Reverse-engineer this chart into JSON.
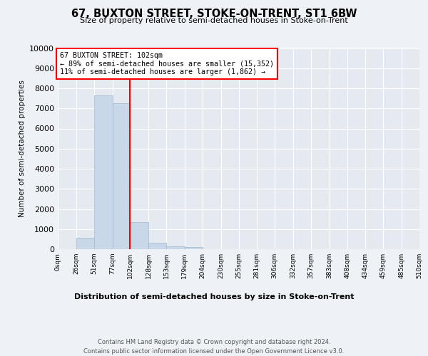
{
  "title": "67, BUXTON STREET, STOKE-ON-TRENT, ST1 6BW",
  "subtitle": "Size of property relative to semi-detached houses in Stoke-on-Trent",
  "xlabel": "Distribution of semi-detached houses by size in Stoke-on-Trent",
  "ylabel": "Number of semi-detached properties",
  "bins": [
    0,
    26,
    51,
    77,
    102,
    128,
    153,
    179,
    204,
    230,
    255,
    281,
    306,
    332,
    357,
    383,
    408,
    434,
    459,
    485,
    510
  ],
  "bar_heights": [
    0,
    580,
    7650,
    7250,
    1350,
    310,
    145,
    90,
    0,
    0,
    0,
    0,
    0,
    0,
    0,
    0,
    0,
    0,
    0,
    0
  ],
  "bar_color": "#c8d8e8",
  "bar_edge_color": "#a0b8d0",
  "vline_x": 102,
  "vline_color": "red",
  "annotation_text": "67 BUXTON STREET: 102sqm\n← 89% of semi-detached houses are smaller (15,352)\n11% of semi-detached houses are larger (1,862) →",
  "annotation_box_color": "white",
  "annotation_box_edge": "red",
  "ylim": [
    0,
    10000
  ],
  "yticks": [
    0,
    1000,
    2000,
    3000,
    4000,
    5000,
    6000,
    7000,
    8000,
    9000,
    10000
  ],
  "tick_labels": [
    "0sqm",
    "26sqm",
    "51sqm",
    "77sqm",
    "102sqm",
    "128sqm",
    "153sqm",
    "179sqm",
    "204sqm",
    "230sqm",
    "255sqm",
    "281sqm",
    "306sqm",
    "332sqm",
    "357sqm",
    "383sqm",
    "408sqm",
    "434sqm",
    "459sqm",
    "485sqm",
    "510sqm"
  ],
  "footer": "Contains HM Land Registry data © Crown copyright and database right 2024.\nContains public sector information licensed under the Open Government Licence v3.0.",
  "bg_color": "#eef2f6",
  "plot_bg_color": "#e4eaf0"
}
